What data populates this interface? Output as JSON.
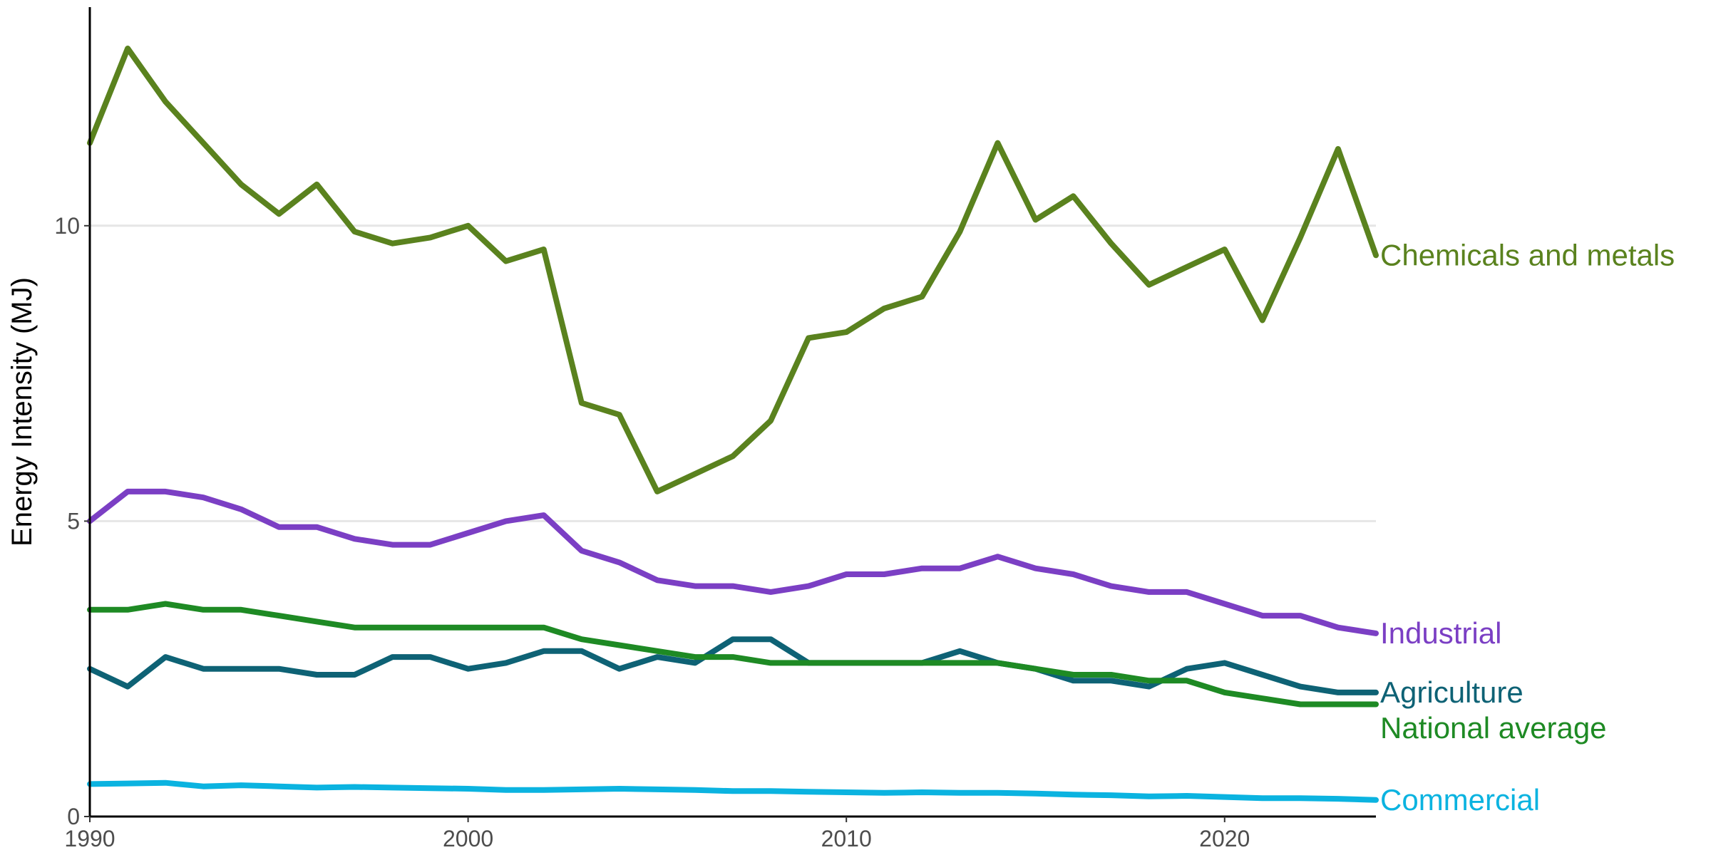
{
  "chart_data": {
    "type": "line",
    "title": "",
    "xlabel": "",
    "ylabel": "Energy Intensity (MJ)",
    "xlim": [
      1990,
      2024
    ],
    "ylim": [
      0,
      13.7
    ],
    "x_ticks": [
      1990,
      2000,
      2010,
      2020
    ],
    "y_ticks": [
      0,
      5,
      10
    ],
    "grid": "horizontal major",
    "legend": "direct labels at line ends (right)",
    "x": [
      1990,
      1991,
      1992,
      1993,
      1994,
      1995,
      1996,
      1997,
      1998,
      1999,
      2000,
      2001,
      2002,
      2003,
      2004,
      2005,
      2006,
      2007,
      2008,
      2009,
      2010,
      2011,
      2012,
      2013,
      2014,
      2015,
      2016,
      2017,
      2018,
      2019,
      2020,
      2021,
      2022,
      2023,
      2024
    ],
    "series": [
      {
        "name": "Chemicals and metals",
        "color": "#5a821e",
        "values": [
          11.4,
          13.0,
          12.1,
          11.4,
          10.7,
          10.2,
          10.7,
          9.9,
          9.7,
          9.8,
          10.0,
          9.4,
          9.6,
          7.0,
          6.8,
          5.5,
          5.8,
          6.1,
          6.7,
          8.1,
          8.2,
          8.6,
          8.8,
          9.9,
          11.4,
          10.1,
          10.5,
          9.7,
          9.0,
          9.3,
          9.6,
          8.4,
          9.8,
          11.3,
          9.5
        ]
      },
      {
        "name": "Industrial",
        "color": "#7b3fc4",
        "values": [
          5.0,
          5.5,
          5.5,
          5.4,
          5.2,
          4.9,
          4.9,
          4.7,
          4.6,
          4.6,
          4.8,
          5.0,
          5.1,
          4.5,
          4.3,
          4.0,
          3.9,
          3.9,
          3.8,
          3.9,
          4.1,
          4.1,
          4.2,
          4.2,
          4.4,
          4.2,
          4.1,
          3.9,
          3.8,
          3.8,
          3.6,
          3.4,
          3.4,
          3.2,
          3.1
        ]
      },
      {
        "name": "Agriculture",
        "color": "#0e6275",
        "values": [
          2.5,
          2.2,
          2.7,
          2.5,
          2.5,
          2.5,
          2.4,
          2.4,
          2.7,
          2.7,
          2.5,
          2.6,
          2.8,
          2.8,
          2.5,
          2.7,
          2.6,
          3.0,
          3.0,
          2.6,
          2.6,
          2.6,
          2.6,
          2.8,
          2.6,
          2.5,
          2.3,
          2.3,
          2.2,
          2.5,
          2.6,
          2.4,
          2.2,
          2.1,
          2.1
        ]
      },
      {
        "name": "National average",
        "color": "#1e8a24",
        "values": [
          3.5,
          3.5,
          3.6,
          3.5,
          3.5,
          3.4,
          3.3,
          3.2,
          3.2,
          3.2,
          3.2,
          3.2,
          3.2,
          3.0,
          2.9,
          2.8,
          2.7,
          2.7,
          2.6,
          2.6,
          2.6,
          2.6,
          2.6,
          2.6,
          2.6,
          2.5,
          2.4,
          2.4,
          2.3,
          2.3,
          2.1,
          2.0,
          1.9,
          1.9,
          1.9
        ]
      },
      {
        "name": "Commercial",
        "color": "#0bb3e0",
        "values": [
          0.55,
          0.56,
          0.57,
          0.51,
          0.53,
          0.51,
          0.49,
          0.5,
          0.49,
          0.48,
          0.47,
          0.45,
          0.45,
          0.46,
          0.47,
          0.46,
          0.45,
          0.43,
          0.43,
          0.42,
          0.41,
          0.4,
          0.41,
          0.4,
          0.4,
          0.39,
          0.37,
          0.36,
          0.34,
          0.35,
          0.33,
          0.31,
          0.31,
          0.3,
          0.28
        ]
      }
    ]
  }
}
